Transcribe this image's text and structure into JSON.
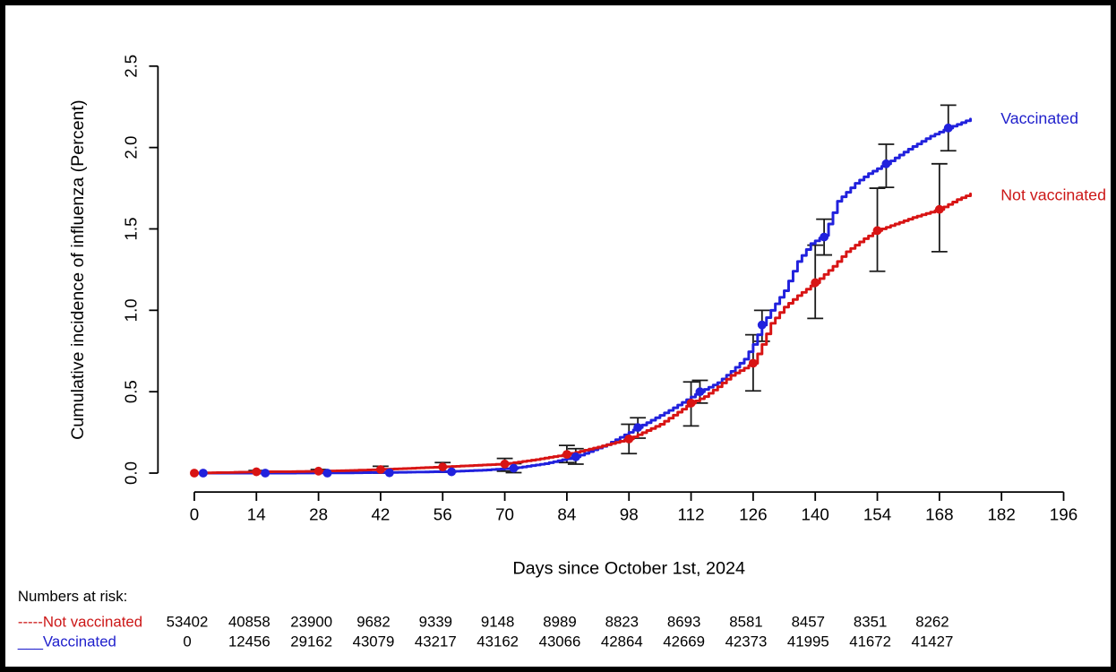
{
  "chart_data": {
    "type": "line",
    "subtype": "cumulative-incidence-step-curves-with-error-bars",
    "title": "",
    "xlabel": "Days since October 1st, 2024",
    "ylabel": "Cumulative incidence of influenza (Percent)",
    "xlim": [
      0,
      196
    ],
    "ylim": [
      0.0,
      2.5
    ],
    "xticks": [
      0,
      14,
      28,
      42,
      56,
      70,
      84,
      98,
      112,
      126,
      140,
      154,
      168,
      182,
      196
    ],
    "yticks": [
      0.0,
      0.5,
      1.0,
      1.5,
      2.0,
      2.5
    ],
    "grid": false,
    "legend_position": "right-end-labels",
    "error_bar_color": "#1a1a1a",
    "series": [
      {
        "name": "Vaccinated",
        "end_label": "Vaccinated",
        "color": "#2121dd",
        "marker_days": [
          2,
          16,
          30,
          44,
          58,
          72,
          86,
          100,
          114,
          128,
          142,
          156,
          170
        ],
        "marker_values": [
          0.0,
          0.0,
          0.0,
          0.002,
          0.008,
          0.03,
          0.1,
          0.28,
          0.5,
          0.91,
          1.45,
          1.9,
          2.12
        ],
        "ci_low": [
          null,
          null,
          null,
          null,
          null,
          0.003,
          0.055,
          0.215,
          0.43,
          0.81,
          1.34,
          1.755,
          1.98
        ],
        "ci_high": [
          null,
          null,
          null,
          null,
          null,
          0.058,
          0.15,
          0.34,
          0.57,
          1.0,
          1.56,
          2.02,
          2.26
        ],
        "curve": [
          [
            0,
            0
          ],
          [
            20,
            0
          ],
          [
            36,
            0.002
          ],
          [
            44,
            0.004
          ],
          [
            52,
            0.007
          ],
          [
            58,
            0.01
          ],
          [
            65,
            0.018
          ],
          [
            72,
            0.03
          ],
          [
            79,
            0.058
          ],
          [
            86,
            0.1
          ],
          [
            93,
            0.175
          ],
          [
            100,
            0.28
          ],
          [
            107,
            0.385
          ],
          [
            114,
            0.5
          ],
          [
            118,
            0.555
          ],
          [
            121,
            0.625
          ],
          [
            124,
            0.7
          ],
          [
            126,
            0.79
          ],
          [
            128,
            0.91
          ],
          [
            130,
            1.0
          ],
          [
            133,
            1.12
          ],
          [
            136,
            1.3
          ],
          [
            139,
            1.41
          ],
          [
            142,
            1.46
          ],
          [
            145,
            1.67
          ],
          [
            149,
            1.78
          ],
          [
            152,
            1.84
          ],
          [
            156,
            1.9
          ],
          [
            161,
            1.99
          ],
          [
            166,
            2.07
          ],
          [
            170,
            2.12
          ],
          [
            175,
            2.175
          ]
        ]
      },
      {
        "name": "Not vaccinated",
        "end_label": "Not vaccinated",
        "color": "#d81414",
        "marker_days": [
          0,
          14,
          28,
          42,
          56,
          70,
          84,
          98,
          112,
          126,
          140,
          154,
          168
        ],
        "marker_values": [
          0.0,
          0.008,
          0.012,
          0.022,
          0.038,
          0.056,
          0.115,
          0.21,
          0.43,
          0.675,
          1.17,
          1.49,
          1.62
        ],
        "ci_low": [
          null,
          0.0,
          0.002,
          0.0,
          0.005,
          0.012,
          0.065,
          0.12,
          0.29,
          0.505,
          0.95,
          1.24,
          1.36
        ],
        "ci_high": [
          null,
          0.016,
          0.022,
          0.042,
          0.065,
          0.09,
          0.17,
          0.3,
          0.56,
          0.85,
          1.4,
          1.75,
          1.9
        ],
        "curve": [
          [
            0,
            0
          ],
          [
            8,
            0.004
          ],
          [
            14,
            0.008
          ],
          [
            22,
            0.009
          ],
          [
            28,
            0.012
          ],
          [
            35,
            0.016
          ],
          [
            42,
            0.022
          ],
          [
            49,
            0.03
          ],
          [
            56,
            0.038
          ],
          [
            63,
            0.047
          ],
          [
            70,
            0.056
          ],
          [
            77,
            0.083
          ],
          [
            84,
            0.115
          ],
          [
            91,
            0.16
          ],
          [
            98,
            0.21
          ],
          [
            105,
            0.3
          ],
          [
            112,
            0.43
          ],
          [
            115,
            0.47
          ],
          [
            118,
            0.53
          ],
          [
            121,
            0.6
          ],
          [
            124,
            0.645
          ],
          [
            126,
            0.675
          ],
          [
            128,
            0.79
          ],
          [
            130,
            0.92
          ],
          [
            133,
            1.02
          ],
          [
            136,
            1.09
          ],
          [
            140,
            1.17
          ],
          [
            144,
            1.27
          ],
          [
            147,
            1.36
          ],
          [
            151,
            1.44
          ],
          [
            154,
            1.49
          ],
          [
            158,
            1.53
          ],
          [
            162,
            1.57
          ],
          [
            168,
            1.62
          ],
          [
            172,
            1.68
          ],
          [
            175,
            1.715
          ]
        ]
      }
    ]
  },
  "numbers_at_risk": {
    "header": "Numbers at risk:",
    "days": [
      0,
      14,
      28,
      42,
      56,
      70,
      84,
      98,
      112,
      126,
      140,
      154,
      168
    ],
    "rows": [
      {
        "prefix": "-----",
        "label": "Not vaccinated",
        "color": "#cc1717",
        "values": [
          53402,
          40858,
          23900,
          9682,
          9339,
          9148,
          8989,
          8823,
          8693,
          8581,
          8457,
          8351,
          8262
        ]
      },
      {
        "prefix": "___",
        "label": "Vaccinated",
        "color": "#2121cc",
        "values": [
          0,
          12456,
          29162,
          43079,
          43217,
          43162,
          43066,
          42864,
          42669,
          42373,
          41995,
          41672,
          41427
        ]
      }
    ]
  }
}
